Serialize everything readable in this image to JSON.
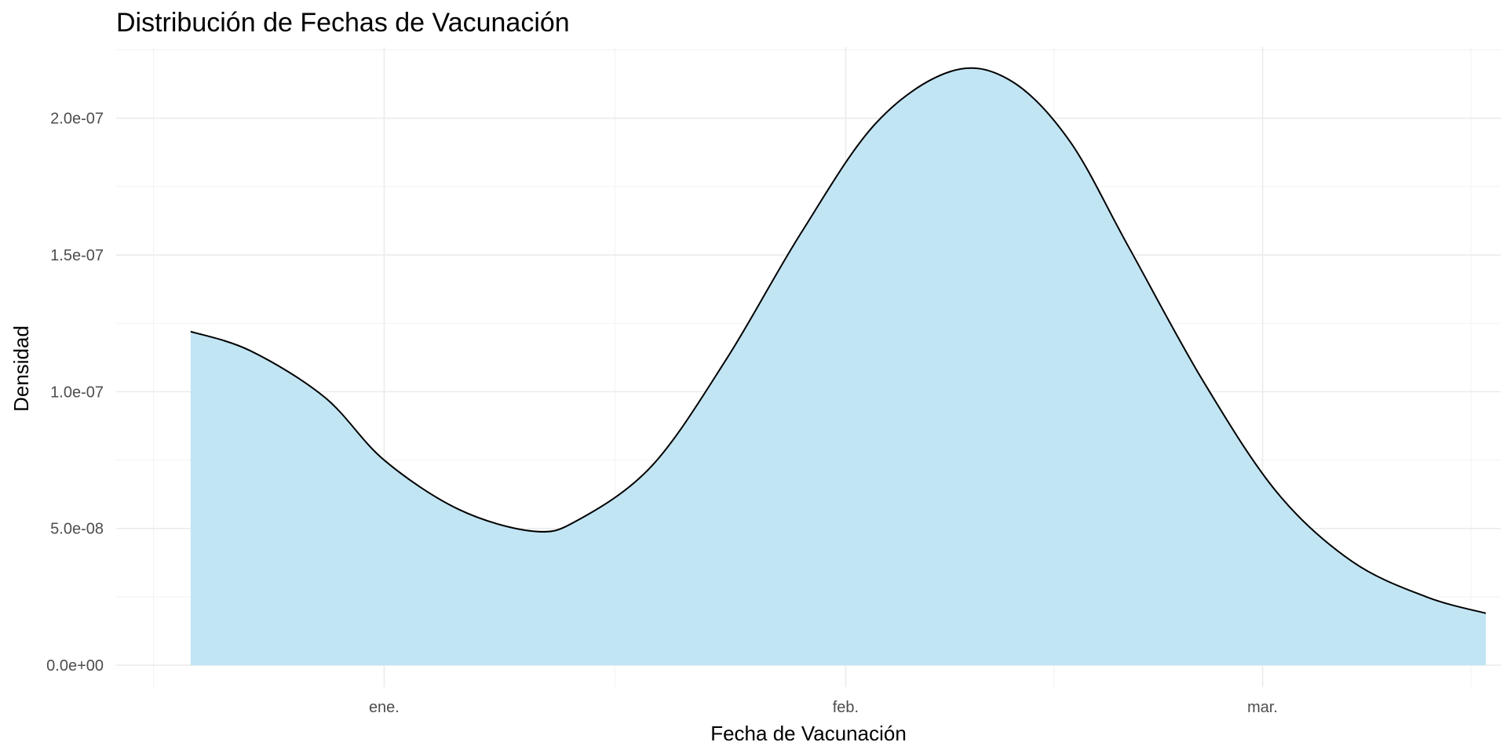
{
  "chart_data": {
    "type": "area",
    "title": "Distribución de Fechas de Vacunación",
    "xlabel": "Fecha de Vacunación",
    "ylabel": "Densidad",
    "x_tick_labels": [
      "ene.",
      "feb.",
      "mar."
    ],
    "x_ticks": [
      "2021-01-01",
      "2021-02-01",
      "2021-03-01"
    ],
    "xlim": [
      "2020-12-14",
      "2021-03-17"
    ],
    "y_ticks": [
      0,
      5e-08,
      1e-07,
      1.5e-07,
      2e-07
    ],
    "y_tick_labels": [
      "0.0e+00",
      "5.0e-08",
      "1.0e-07",
      "1.5e-07",
      "2.0e-07"
    ],
    "ylim": [
      -8e-09,
      2.26e-07
    ],
    "grid": true,
    "fill_color": "#c2e5f4",
    "line_color": "#000000",
    "series": [
      {
        "x": [
          "2020-12-19",
          "2020-12-23",
          "2020-12-28",
          "2021-01-01",
          "2021-01-06",
          "2021-01-11",
          "2021-01-14",
          "2021-01-19",
          "2021-01-24",
          "2021-01-29",
          "2021-02-03",
          "2021-02-08",
          "2021-02-12",
          "2021-02-16",
          "2021-02-20",
          "2021-02-25",
          "2021-03-02",
          "2021-03-07",
          "2021-03-12",
          "2021-03-16"
        ],
        "y": [
          1.22e-07,
          1.15e-07,
          9.8e-08,
          7.5e-08,
          5.7e-08,
          4.9e-08,
          5.3e-08,
          7.3e-08,
          1.12e-07,
          1.58e-07,
          1.98e-07,
          2.17e-07,
          2.14e-07,
          1.92e-07,
          1.53e-07,
          1.04e-07,
          6.3e-08,
          3.8e-08,
          2.5e-08,
          1.9e-08
        ]
      }
    ]
  }
}
